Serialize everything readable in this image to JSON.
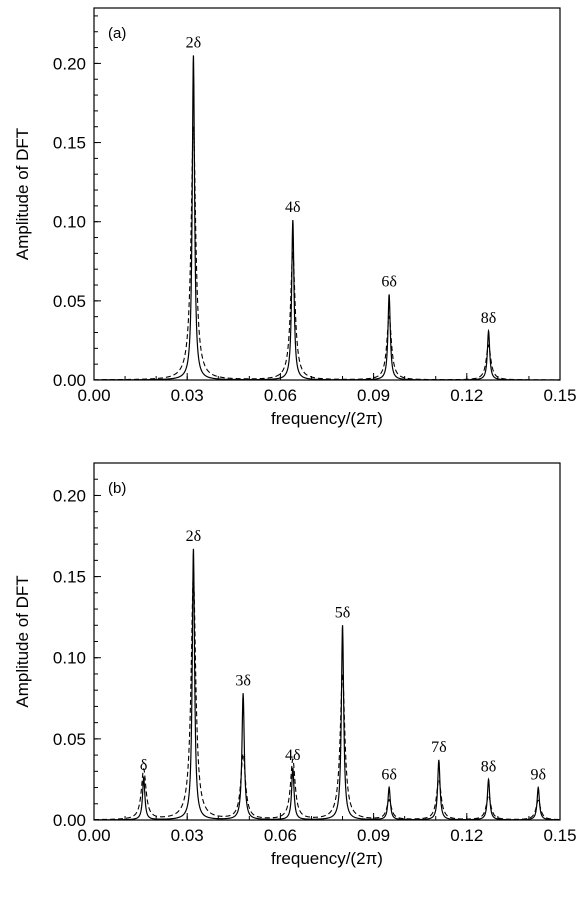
{
  "chart_data": [
    {
      "type": "line",
      "panel_label": "(a)",
      "xlabel": "frequency/(2π)",
      "ylabel": "Amplitude of DFT",
      "xlim": [
        0.0,
        0.15
      ],
      "ylim": [
        0.0,
        0.235
      ],
      "xticks": [
        "0.00",
        "0.03",
        "0.06",
        "0.09",
        "0.12",
        "0.15"
      ],
      "yticks": [
        "0.00",
        "0.05",
        "0.10",
        "0.15",
        "0.20"
      ],
      "grid": false,
      "series": [
        {
          "style": "solid",
          "peaks": [
            {
              "x": 0.032,
              "y": 0.205,
              "label": "2δ"
            },
            {
              "x": 0.064,
              "y": 0.101,
              "label": "4δ"
            },
            {
              "x": 0.095,
              "y": 0.054,
              "label": "6δ"
            },
            {
              "x": 0.127,
              "y": 0.031,
              "label": "8δ"
            }
          ]
        },
        {
          "style": "dashed",
          "peaks": [
            {
              "x": 0.032,
              "y": 0.16
            },
            {
              "x": 0.064,
              "y": 0.08
            },
            {
              "x": 0.095,
              "y": 0.04
            },
            {
              "x": 0.127,
              "y": 0.022
            }
          ]
        }
      ]
    },
    {
      "type": "line",
      "panel_label": "(b)",
      "xlabel": "frequency/(2π)",
      "ylabel": "Amplitude of DFT",
      "xlim": [
        0.0,
        0.15
      ],
      "ylim": [
        0.0,
        0.22
      ],
      "xticks": [
        "0.00",
        "0.03",
        "0.06",
        "0.09",
        "0.12",
        "0.15"
      ],
      "yticks": [
        "0.00",
        "0.05",
        "0.10",
        "0.15",
        "0.20"
      ],
      "grid": false,
      "series": [
        {
          "style": "solid",
          "peaks": [
            {
              "x": 0.016,
              "y": 0.026,
              "label": "δ"
            },
            {
              "x": 0.032,
              "y": 0.167,
              "label": "2δ"
            },
            {
              "x": 0.048,
              "y": 0.078,
              "label": "3δ"
            },
            {
              "x": 0.064,
              "y": 0.032,
              "label": "4δ"
            },
            {
              "x": 0.08,
              "y": 0.12,
              "label": "5δ"
            },
            {
              "x": 0.095,
              "y": 0.02,
              "label": "6δ"
            },
            {
              "x": 0.111,
              "y": 0.037,
              "label": "7δ"
            },
            {
              "x": 0.127,
              "y": 0.025,
              "label": "8δ"
            },
            {
              "x": 0.143,
              "y": 0.02,
              "label": "9δ"
            }
          ]
        },
        {
          "style": "dashed",
          "peaks": [
            {
              "x": 0.016,
              "y": 0.031
            },
            {
              "x": 0.032,
              "y": 0.15
            },
            {
              "x": 0.048,
              "y": 0.04
            },
            {
              "x": 0.064,
              "y": 0.037
            },
            {
              "x": 0.08,
              "y": 0.09
            },
            {
              "x": 0.095,
              "y": 0.012
            },
            {
              "x": 0.111,
              "y": 0.025
            },
            {
              "x": 0.127,
              "y": 0.015
            },
            {
              "x": 0.143,
              "y": 0.012
            }
          ]
        }
      ]
    }
  ]
}
